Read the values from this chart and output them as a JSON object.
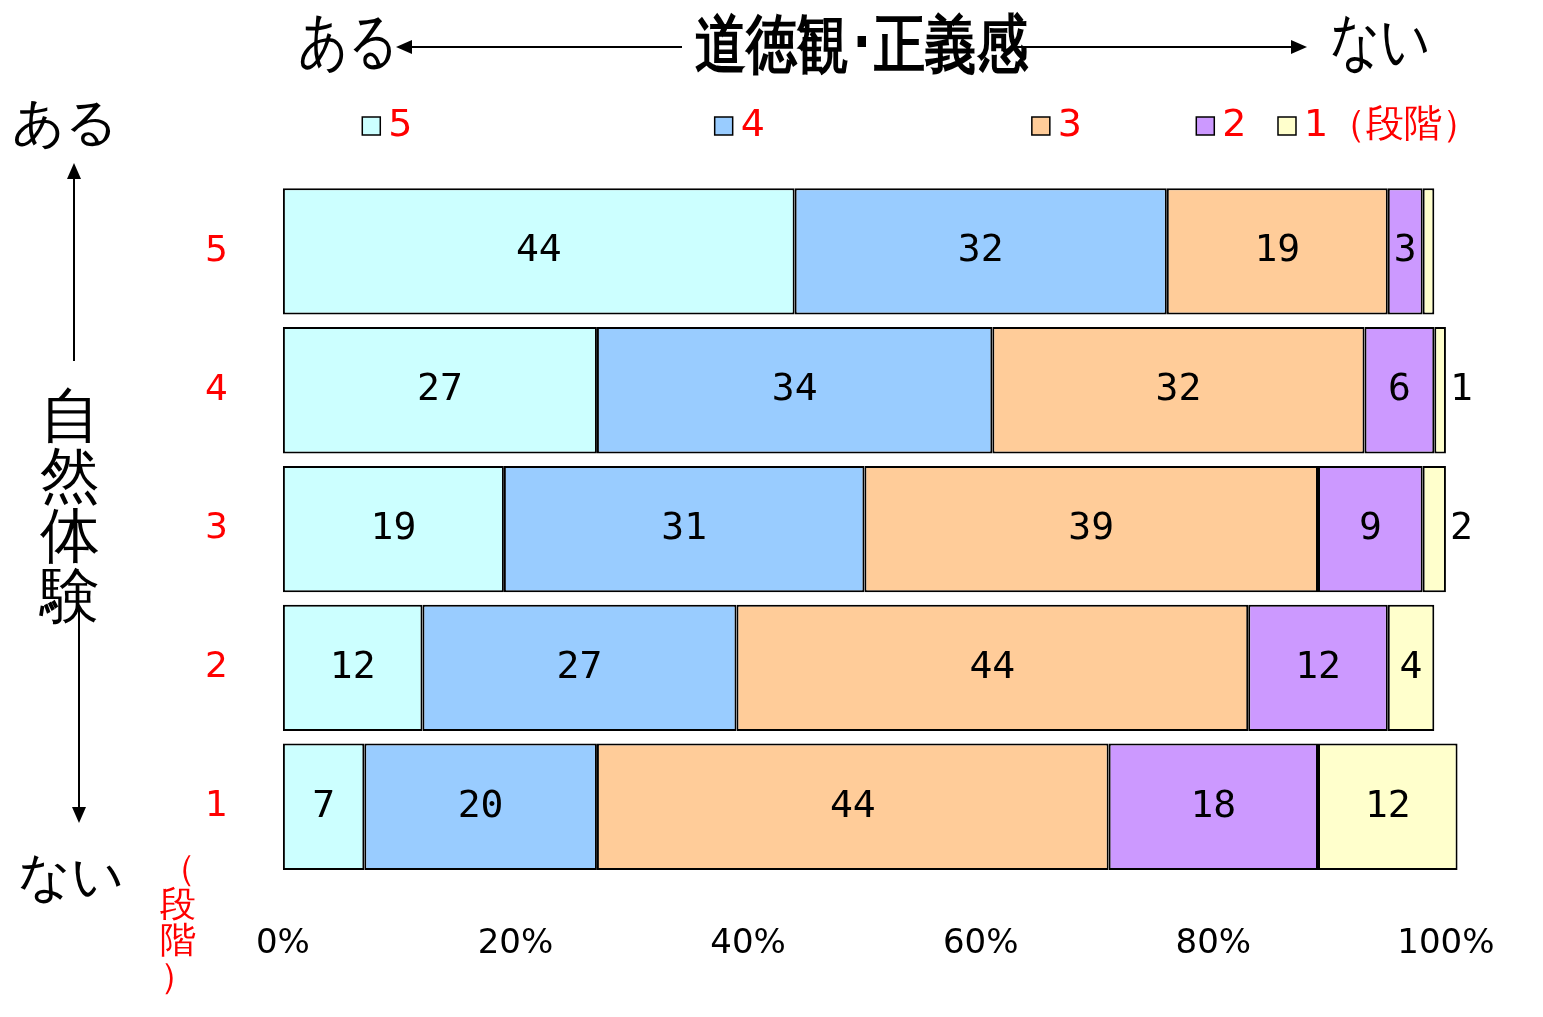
{
  "chart_data": {
    "type": "bar",
    "orientation": "horizontal",
    "stacked": true,
    "title": "道徳観･正義感",
    "ylabel": "自然体験",
    "categories": [
      "5",
      "4",
      "3",
      "2",
      "1"
    ],
    "series": [
      {
        "name": "5",
        "color": "#ccffff",
        "values": [
          44,
          27,
          19,
          12,
          7
        ],
        "value_labels": [
          "44",
          "27",
          "19",
          "12",
          "7"
        ]
      },
      {
        "name": "4",
        "color": "#99ccff",
        "values": [
          32,
          34,
          31,
          27,
          20
        ],
        "value_labels": [
          "32",
          "34",
          "31",
          "27",
          "20"
        ]
      },
      {
        "name": "3",
        "color": "#ffcc99",
        "values": [
          19,
          32,
          39,
          44,
          44
        ],
        "value_labels": [
          "19",
          "32",
          "39",
          "44",
          "44"
        ]
      },
      {
        "name": "2",
        "color": "#cc99ff",
        "values": [
          3,
          6,
          9,
          12,
          18
        ],
        "value_labels": [
          "3",
          "6",
          "9",
          "12",
          "18"
        ]
      },
      {
        "name": "1（段階）",
        "color": "#ffffcc",
        "values": [
          1,
          1,
          2,
          4,
          12
        ],
        "value_labels": [
          null,
          "1",
          "2",
          "4",
          "12"
        ]
      }
    ],
    "xlim": [
      0,
      101
    ],
    "xticks": [
      {
        "value": 0,
        "label": "0%"
      },
      {
        "value": 20,
        "label": "20%"
      },
      {
        "value": 40,
        "label": "40%"
      },
      {
        "value": 60,
        "label": "60%"
      },
      {
        "value": 80,
        "label": "80%"
      },
      {
        "value": 100,
        "label": "100%"
      }
    ],
    "annotations": [
      "ある",
      "ない",
      "ある",
      "ない",
      "（段階）"
    ],
    "legend": "top",
    "grid": false
  }
}
